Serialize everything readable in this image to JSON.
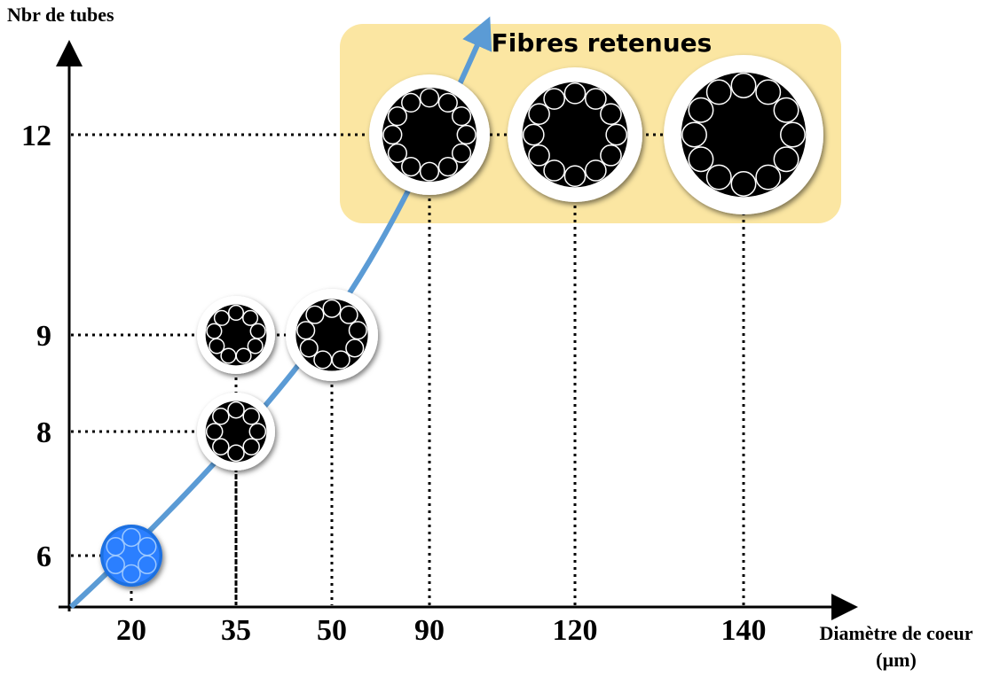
{
  "y_axis": {
    "label": "Nbr de tubes",
    "ticks": [
      "6",
      "8",
      "9",
      "12"
    ]
  },
  "x_axis": {
    "label": [
      "Diamètre de coeur",
      "(µm)"
    ],
    "ticks": [
      "20",
      "35",
      "50",
      "90",
      "120",
      "140"
    ]
  },
  "highlight": {
    "label": "Fibres retenues"
  },
  "fibers": [
    {
      "core_diameter": 20,
      "tubes": 6
    },
    {
      "core_diameter": 35,
      "tubes": 8
    },
    {
      "core_diameter": 35,
      "tubes": 9
    },
    {
      "core_diameter": 50,
      "tubes": 9
    },
    {
      "core_diameter": 90,
      "tubes": 12
    },
    {
      "core_diameter": 120,
      "tubes": 12
    },
    {
      "core_diameter": 140,
      "tubes": 12
    }
  ]
}
